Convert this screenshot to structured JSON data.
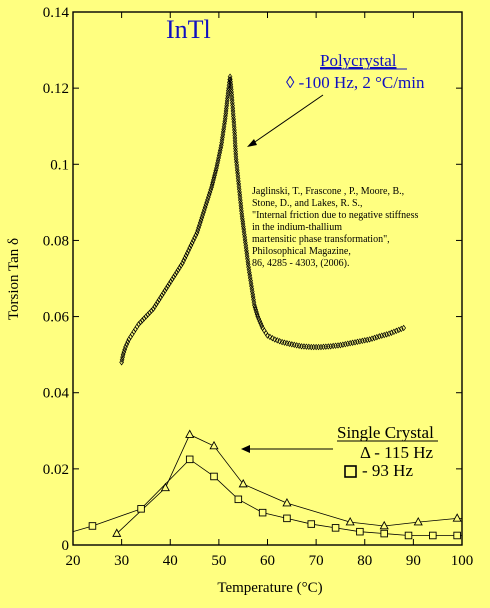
{
  "chart_data": {
    "type": "scatter",
    "title": "InTl",
    "xlabel": "Temperature (°C)",
    "ylabel": "Torsion Tan δ",
    "xlim": [
      20,
      100
    ],
    "ylim": [
      0,
      0.14
    ],
    "x_ticks": [
      "20",
      "30",
      "40",
      "50",
      "60",
      "70",
      "80",
      "90",
      "100"
    ],
    "y_ticks": [
      "0",
      "0.02",
      "0.04",
      "0.06",
      "0.08",
      "0.1",
      "0.12",
      "0.14"
    ],
    "grid": false,
    "colors": {
      "background": "#ffff80",
      "text": "#000000",
      "title": "#1010c0",
      "polycrystal_label": "#1010c0"
    },
    "annotations": {
      "polycrystal_title": "Polycrystal",
      "polycrystal_desc": "◊ -100 Hz, 2 °C/min",
      "single_title": "Single Crystal",
      "single_triangle": "Δ - 115 Hz",
      "single_square": "- 93 Hz",
      "citation": [
        "Jaglinski, T., Frascone , P., Moore, B.,",
        "Stone, D., and Lakes, R. S.,",
        "\"Internal friction due to negative stiffness",
        "in the indium-thallium",
        "martensitic phase transformation\",",
        "Philosophical Magazine,",
        "86, 4285 - 4303, (2006)."
      ]
    },
    "series": [
      {
        "name": "Polycrystal, -100 Hz, 2 °C/min",
        "marker": "diamond",
        "x": [
          30.0,
          30.3,
          30.8,
          31.5,
          32.5,
          33.5,
          35.0,
          36.5,
          38.0,
          39.5,
          41.0,
          42.5,
          44.0,
          45.5,
          47.0,
          48.5,
          49.5,
          50.5,
          51.3,
          52.0,
          52.3,
          52.6,
          52.9,
          53.2,
          53.5,
          53.9,
          54.3,
          54.7,
          55.1,
          55.6,
          56.1,
          56.7,
          57.3,
          58.0,
          59.0,
          60.0,
          61.5,
          63.0,
          65.0,
          67.0,
          69.0,
          71.0,
          73.0,
          75.0,
          77.0,
          79.0,
          81.0,
          83.0,
          85.0,
          86.0,
          87.0,
          88.0
        ],
        "y": [
          0.048,
          0.05,
          0.052,
          0.054,
          0.056,
          0.058,
          0.06,
          0.062,
          0.065,
          0.068,
          0.071,
          0.074,
          0.078,
          0.082,
          0.088,
          0.094,
          0.099,
          0.105,
          0.112,
          0.12,
          0.123,
          0.119,
          0.114,
          0.109,
          0.102,
          0.097,
          0.092,
          0.087,
          0.083,
          0.078,
          0.073,
          0.068,
          0.063,
          0.06,
          0.057,
          0.055,
          0.054,
          0.0533,
          0.0527,
          0.0522,
          0.052,
          0.052,
          0.0522,
          0.0525,
          0.053,
          0.0535,
          0.054,
          0.0548,
          0.0555,
          0.056,
          0.0565,
          0.057
        ]
      },
      {
        "name": "Single Crystal, 115 Hz",
        "marker": "triangle",
        "x": [
          29.0,
          39.0,
          44.0,
          49.0,
          55.0,
          64.0,
          77.0,
          84.0,
          91.0,
          99.0
        ],
        "y": [
          0.003,
          0.015,
          0.029,
          0.026,
          0.016,
          0.011,
          0.006,
          0.005,
          0.006,
          0.007
        ]
      },
      {
        "name": "Single Crystal, 93 Hz",
        "marker": "square",
        "x": [
          24.0,
          34.0,
          44.0,
          49.0,
          54.0,
          59.0,
          64.0,
          69.0,
          74.0,
          79.0,
          84.0,
          89.0,
          94.0,
          99.0
        ],
        "y": [
          0.005,
          0.0095,
          0.0225,
          0.018,
          0.012,
          0.0085,
          0.007,
          0.0055,
          0.0045,
          0.0035,
          0.003,
          0.0025,
          0.0025,
          0.0025
        ]
      }
    ]
  }
}
